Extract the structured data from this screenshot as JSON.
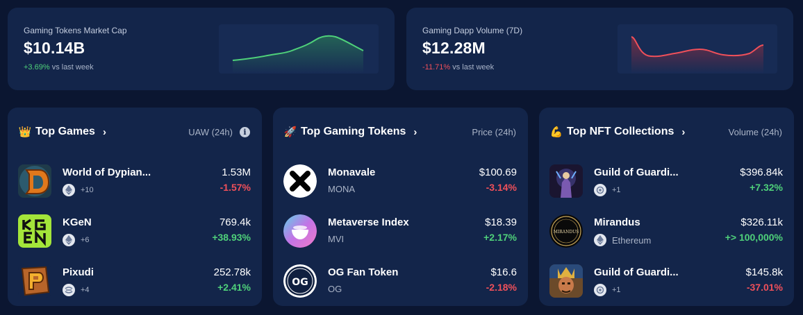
{
  "market_cap": {
    "label": "Gaming Tokens Market Cap",
    "value": "$10.14B",
    "delta": "+3.69%",
    "delta_suffix": "vs last week",
    "delta_direction": "up",
    "spark_color": "#4fd17a"
  },
  "dapp_volume": {
    "label": "Gaming Dapp Volume (7D)",
    "value": "$12.28M",
    "delta": "-11.71%",
    "delta_suffix": "vs last week",
    "delta_direction": "down",
    "spark_color": "#f0505a"
  },
  "top_games": {
    "emoji": "👑",
    "title": "Top Games",
    "metric": "UAW (24h)",
    "items": [
      {
        "name": "World of Dypian...",
        "chain_icon": "ethereum-icon",
        "extra": "+10",
        "value": "1.53M",
        "change": "-1.57%"
      },
      {
        "name": "KGeN",
        "chain_icon": "ethereum-icon",
        "extra": "+6",
        "value": "769.4k",
        "change": "+38.93%"
      },
      {
        "name": "Pixudi",
        "chain_icon": "multichain-icon",
        "extra": "+4",
        "value": "252.78k",
        "change": "+2.41%"
      }
    ]
  },
  "top_tokens": {
    "emoji": "🚀",
    "title": "Top Gaming Tokens",
    "metric": "Price (24h)",
    "items": [
      {
        "name": "Monavale",
        "symbol": "MONA",
        "value": "$100.69",
        "change": "-3.14%"
      },
      {
        "name": "Metaverse Index",
        "symbol": "MVI",
        "value": "$18.39",
        "change": "+2.17%"
      },
      {
        "name": "OG Fan Token",
        "symbol": "OG",
        "value": "$16.6",
        "change": "-2.18%",
        "logo_text": "OG"
      }
    ]
  },
  "top_nfts": {
    "emoji": "💪",
    "title": "Top NFT Collections",
    "metric": "Volume (24h)",
    "items": [
      {
        "name": "Guild of Guardi...",
        "chain_icon": "immutable-icon",
        "extra": "+1",
        "value": "$396.84k",
        "change": "+7.32%"
      },
      {
        "name": "Mirandus",
        "chain_icon": "ethereum-icon",
        "extra": "Ethereum",
        "value": "$326.11k",
        "change": "+> 100,000%",
        "logo_text": "MIRANDUS"
      },
      {
        "name": "Guild of Guardi...",
        "chain_icon": "immutable-icon",
        "extra": "+1",
        "value": "$145.8k",
        "change": "-37.01%"
      }
    ]
  }
}
